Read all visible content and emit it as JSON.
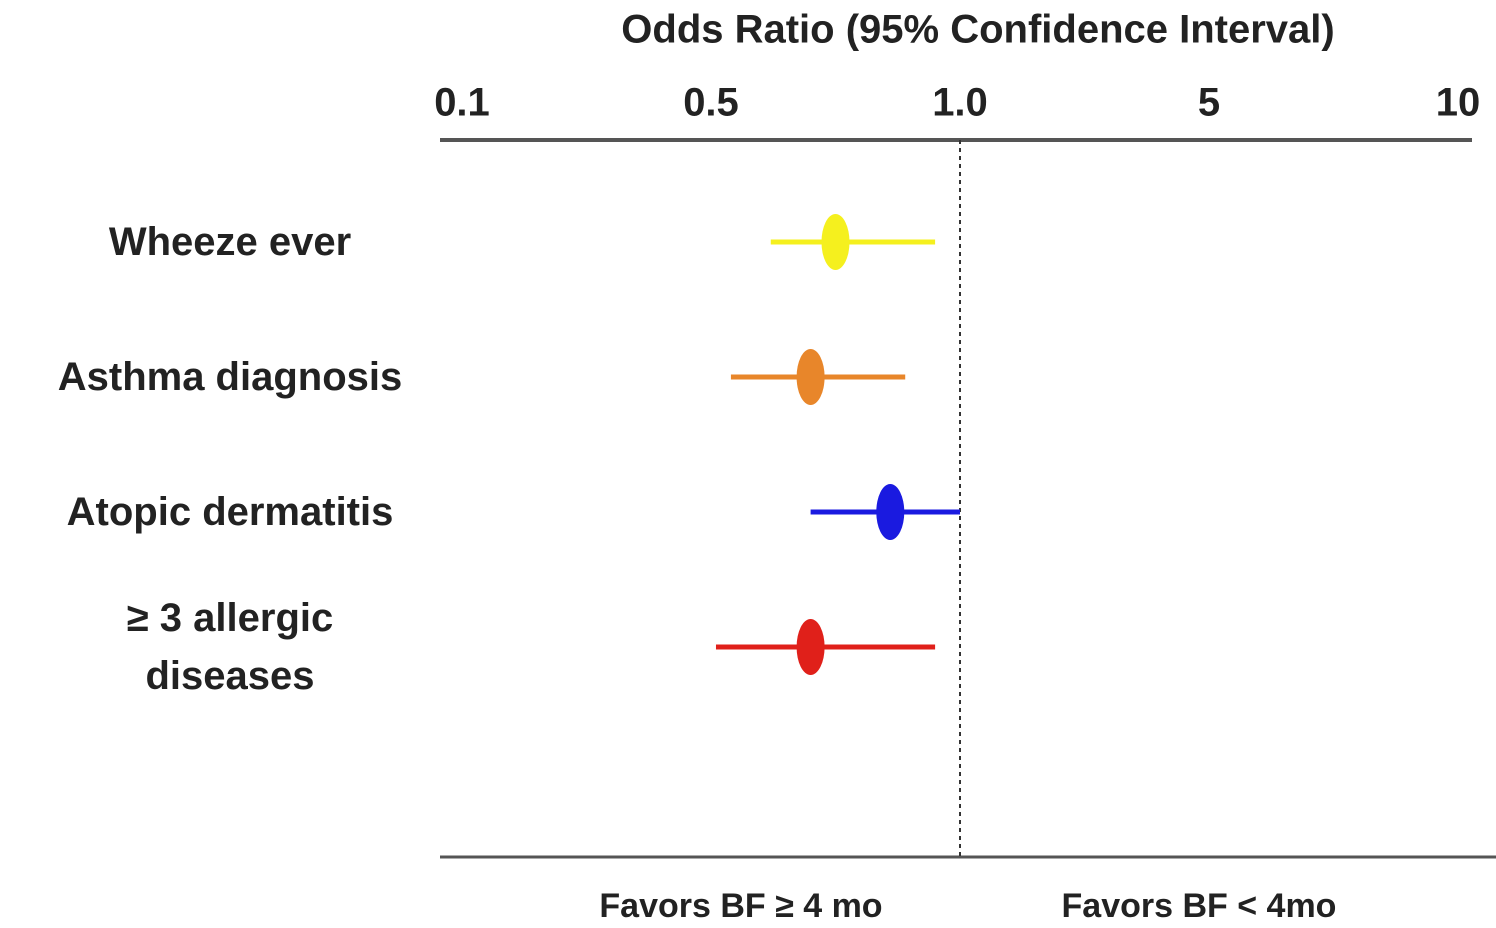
{
  "chart_data": {
    "type": "forest",
    "title": "Odds Ratio (95% Confidence Interval)",
    "categories": [
      "Wheeze ever",
      "Asthma diagnosis",
      "Atopic dermatitis",
      "≥ 3 allergic diseases"
    ],
    "values": [
      0.75,
      0.7,
      0.86,
      0.7
    ],
    "ci_low": [
      0.62,
      0.54,
      0.7,
      0.51
    ],
    "ci_high": [
      0.95,
      0.89,
      1.0,
      0.95
    ],
    "colors": [
      "#f5f01e",
      "#e8862a",
      "#1a1ae0",
      "#e0201a"
    ],
    "xlim": [
      0.1,
      10
    ],
    "xticks": [
      0.1,
      0.5,
      {
        "value": 1,
        "label": "1.0"
      },
      5,
      10
    ],
    "reference_line": 1,
    "annotations": [
      "Favors BF ≥ 4 mo",
      "Favors BF < 4mo"
    ]
  }
}
